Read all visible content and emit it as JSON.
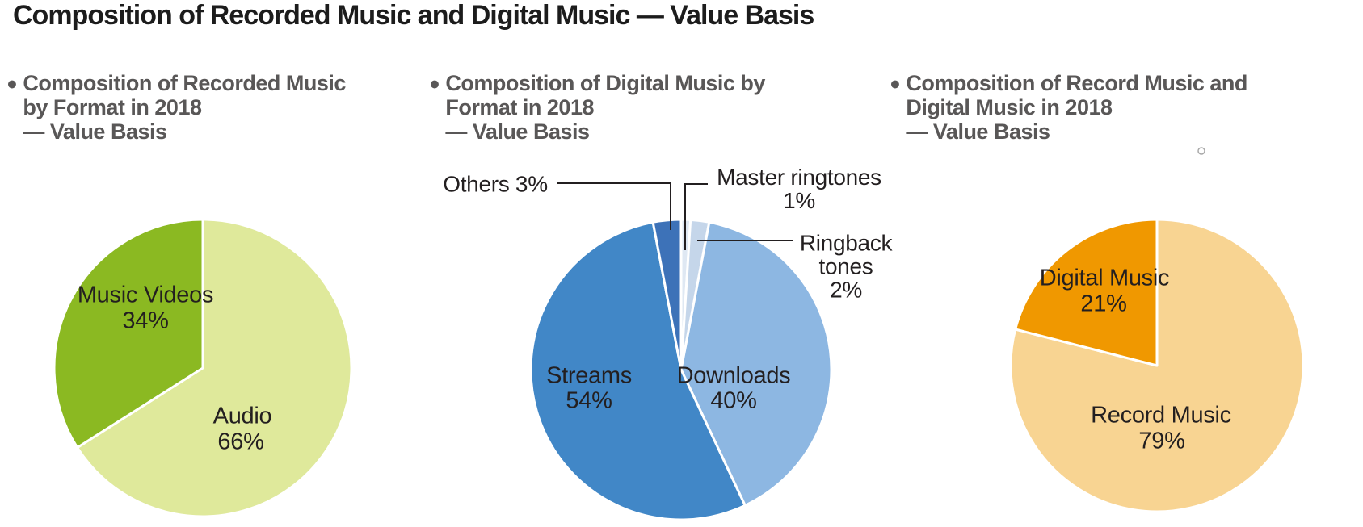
{
  "page_title": "Composition of Recorded Music and Digital Music — Value Basis",
  "charts": [
    {
      "bullet": "●",
      "title_lines": [
        "Composition of Recorded Music",
        "by Format in 2018",
        "— Value Basis"
      ],
      "labels": {
        "music_videos": "Music Videos",
        "music_videos_pct": "34%",
        "audio": "Audio",
        "audio_pct": "66%"
      }
    },
    {
      "bullet": "●",
      "title_lines": [
        "Composition of Digital Music by",
        "Format in 2018",
        "— Value Basis"
      ],
      "labels": {
        "streams": "Streams",
        "streams_pct": "54%",
        "downloads": "Downloads",
        "downloads_pct": "40%",
        "others": "Others 3%",
        "master_line1": "Master ringtones",
        "master_line2": "1%",
        "ringback_line1": "Ringback",
        "ringback_line2": "tones",
        "ringback_line3": "2%"
      }
    },
    {
      "bullet": "●",
      "title_lines": [
        "Composition of Record Music and",
        "Digital Music in 2018",
        "— Value Basis"
      ],
      "labels": {
        "digital_music": "Digital Music",
        "digital_music_pct": "21%",
        "record_music": "Record Music",
        "record_music_pct": "79%"
      }
    }
  ],
  "chart_data": [
    {
      "type": "pie",
      "title": "Composition of Recorded Music by Format in 2018 — Value Basis",
      "categories": [
        "Audio",
        "Music Videos"
      ],
      "values": [
        66,
        34
      ],
      "unit": "%",
      "colors": [
        "#dfe99b",
        "#8bb922"
      ],
      "start_angle": "12 o'clock",
      "direction": "clockwise",
      "legend_position": "none",
      "labels_placement": "inside slices"
    },
    {
      "type": "pie",
      "title": "Composition of Digital Music by Format in 2018 — Value Basis",
      "categories": [
        "Master ringtones",
        "Ringback tones",
        "Downloads",
        "Streams",
        "Others"
      ],
      "values": [
        1,
        2,
        40,
        54,
        3
      ],
      "unit": "%",
      "colors": [
        "#dfe8f3",
        "#c5d6ea",
        "#8db7e2",
        "#4187c7",
        "#3d72b8"
      ],
      "start_angle": "12 o'clock",
      "direction": "clockwise",
      "legend_position": "none",
      "labels_placement": "large slices inside, small slices via callout lines"
    },
    {
      "type": "pie",
      "title": "Composition of Record Music and Digital Music in 2018 — Value Basis",
      "categories": [
        "Record Music",
        "Digital Music"
      ],
      "values": [
        79,
        21
      ],
      "unit": "%",
      "colors": [
        "#f8d492",
        "#f09800"
      ],
      "start_angle": "12 o'clock",
      "direction": "clockwise",
      "legend_position": "none",
      "labels_placement": "inside slices"
    }
  ],
  "colors": {
    "title_text": "#1c1c1c",
    "chart_title_text": "#595757",
    "slice_label_text": "#231f20",
    "callout_line": "#231f20",
    "slice_separator": "#ffffff"
  }
}
